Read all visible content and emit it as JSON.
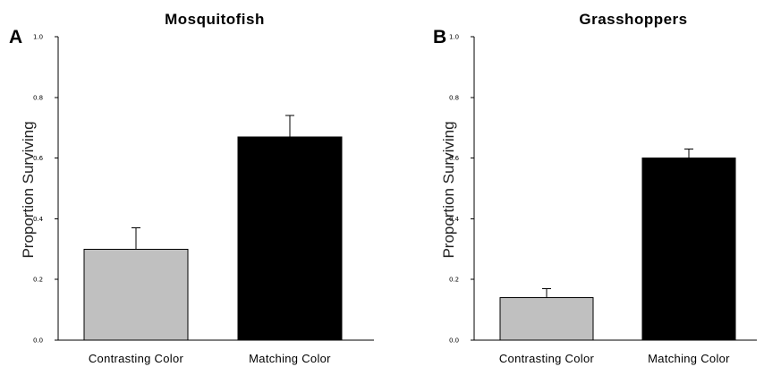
{
  "chart_data": [
    {
      "type": "bar",
      "panel": "A",
      "title": "Mosquitofish",
      "ylabel": "Proportion Surviving",
      "xlabel": "",
      "categories": [
        "Contrasting Color",
        "Matching Color"
      ],
      "values": [
        0.3,
        0.67
      ],
      "errors": [
        0.07,
        0.07
      ],
      "bar_colors": [
        "#c0c0c0",
        "#000000"
      ],
      "ylim": [
        0.0,
        1.0
      ],
      "yticks": [
        0.0,
        0.2,
        0.4,
        0.6,
        0.8,
        1.0
      ],
      "ytick_labels": [
        "0.0",
        "0.2",
        "0.4",
        "0.6",
        "0.8",
        "1.0"
      ],
      "grid": false
    },
    {
      "type": "bar",
      "panel": "B",
      "title": "Grasshoppers",
      "ylabel": "Proportion Surviving",
      "xlabel": "",
      "categories": [
        "Contrasting Color",
        "Matching Color"
      ],
      "values": [
        0.14,
        0.6
      ],
      "errors": [
        0.03,
        0.03
      ],
      "bar_colors": [
        "#c0c0c0",
        "#000000"
      ],
      "ylim": [
        0.0,
        1.0
      ],
      "yticks": [
        0.0,
        0.2,
        0.4,
        0.6,
        0.8,
        1.0
      ],
      "ytick_labels": [
        "0.0",
        "0.2",
        "0.4",
        "0.6",
        "0.8",
        "1.0"
      ],
      "grid": false
    }
  ]
}
